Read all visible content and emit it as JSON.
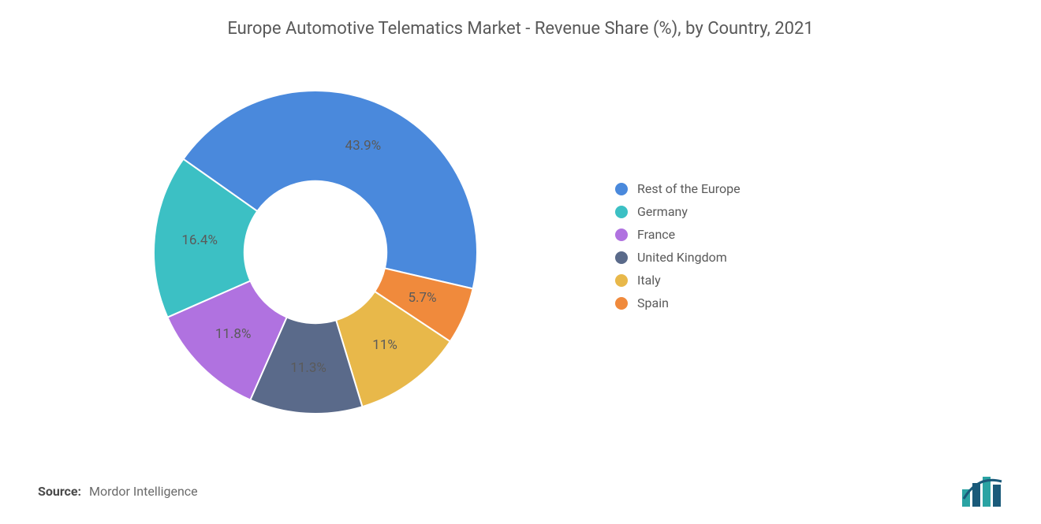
{
  "chart": {
    "type": "donut",
    "title": "Europe Automotive Telematics Market - Revenue Share (%), by Country, 2021",
    "title_fontsize": 22,
    "title_color": "#595959",
    "background_color": "#ffffff",
    "inner_radius_ratio": 0.44,
    "start_angle_deg": -144.8,
    "slice_gap_color": "#ffffff",
    "slice_gap_width": 2,
    "label_fontsize": 17,
    "label_color": "#5a5a5a",
    "slices": [
      {
        "name": "Rest of the Europe",
        "value": 43.9,
        "label": "43.9%",
        "color": "#4a89dc"
      },
      {
        "name": "Spain",
        "value": 5.7,
        "label": "5.7%",
        "color": "#f08a3c"
      },
      {
        "name": "Italy",
        "value": 11.0,
        "label": "11%",
        "color": "#e8b84a"
      },
      {
        "name": "United Kingdom",
        "value": 11.3,
        "label": "11.3%",
        "color": "#5a6a8a"
      },
      {
        "name": "France",
        "value": 11.8,
        "label": "11.8%",
        "color": "#b072e0"
      },
      {
        "name": "Germany",
        "value": 16.4,
        "label": "16.4%",
        "color": "#3cc0c4"
      }
    ],
    "legend": {
      "position": "right",
      "fontsize": 16,
      "text_color": "#5a5a5a",
      "swatch_shape": "circle",
      "swatch_size": 16,
      "items": [
        {
          "label": "Rest of the Europe",
          "color": "#4a89dc"
        },
        {
          "label": "Germany",
          "color": "#3cc0c4"
        },
        {
          "label": "France",
          "color": "#b072e0"
        },
        {
          "label": "United Kingdom",
          "color": "#5a6a8a"
        },
        {
          "label": "Italy",
          "color": "#e8b84a"
        },
        {
          "label": "Spain",
          "color": "#f08a3c"
        }
      ]
    }
  },
  "source": {
    "prefix": "Source:",
    "text": "Mordor Intelligence",
    "fontsize": 16
  },
  "logo": {
    "bars": [
      "#2aa3a3",
      "#1a5a7a",
      "#2aa3a3",
      "#1a5a7a"
    ],
    "accent": "#1a5a7a"
  }
}
